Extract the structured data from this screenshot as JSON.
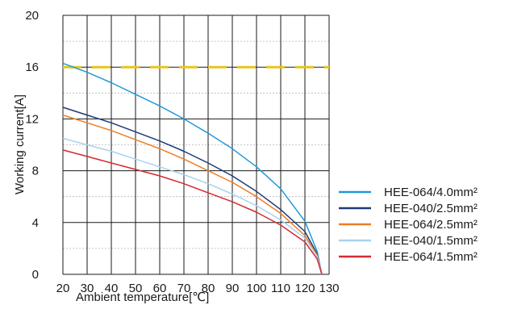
{
  "chart_data": {
    "type": "line",
    "title": "",
    "xlabel": "Ambient temperature[℃]",
    "ylabel": "Working current[A]",
    "xlim": [
      20,
      130
    ],
    "ylim": [
      0,
      20
    ],
    "x_ticks": [
      20,
      30,
      40,
      50,
      60,
      70,
      80,
      90,
      100,
      110,
      120,
      130
    ],
    "y_ticks": [
      0,
      4,
      8,
      12,
      16,
      20
    ],
    "grid": true,
    "minor_horizontal_grid": true,
    "legend_position": "right",
    "reference_line": {
      "y": 16,
      "color": "#e6c619",
      "style": "dashed"
    },
    "series": [
      {
        "name": "HEE-064/4.0mm²",
        "color": "#1f9bd7",
        "points": [
          [
            20,
            16.3
          ],
          [
            30,
            15.6
          ],
          [
            40,
            14.8
          ],
          [
            50,
            13.9
          ],
          [
            60,
            13.0
          ],
          [
            70,
            12.0
          ],
          [
            80,
            10.9
          ],
          [
            90,
            9.7
          ],
          [
            100,
            8.3
          ],
          [
            110,
            6.6
          ],
          [
            120,
            4.1
          ],
          [
            125,
            1.8
          ],
          [
            127,
            0
          ]
        ]
      },
      {
        "name": "HEE-040/2.5mm²",
        "color": "#1f3a78",
        "points": [
          [
            20,
            12.9
          ],
          [
            30,
            12.3
          ],
          [
            40,
            11.7
          ],
          [
            50,
            11.0
          ],
          [
            60,
            10.3
          ],
          [
            70,
            9.5
          ],
          [
            80,
            8.6
          ],
          [
            90,
            7.6
          ],
          [
            100,
            6.4
          ],
          [
            110,
            5.0
          ],
          [
            120,
            3.3
          ],
          [
            125,
            1.6
          ],
          [
            127,
            0
          ]
        ]
      },
      {
        "name": "HEE-064/2.5mm²",
        "color": "#ef7d22",
        "points": [
          [
            20,
            12.3
          ],
          [
            30,
            11.7
          ],
          [
            40,
            11.1
          ],
          [
            50,
            10.4
          ],
          [
            60,
            9.7
          ],
          [
            70,
            8.9
          ],
          [
            80,
            8.0
          ],
          [
            90,
            7.1
          ],
          [
            100,
            6.0
          ],
          [
            110,
            4.7
          ],
          [
            120,
            3.0
          ],
          [
            125,
            1.5
          ],
          [
            127,
            0
          ]
        ]
      },
      {
        "name": "HEE-040/1.5mm²",
        "color": "#a7d3ee",
        "points": [
          [
            20,
            10.5
          ],
          [
            30,
            10.0
          ],
          [
            40,
            9.5
          ],
          [
            50,
            8.9
          ],
          [
            60,
            8.3
          ],
          [
            70,
            7.7
          ],
          [
            80,
            7.0
          ],
          [
            90,
            6.2
          ],
          [
            100,
            5.3
          ],
          [
            110,
            4.2
          ],
          [
            120,
            2.8
          ],
          [
            125,
            1.4
          ],
          [
            127,
            0
          ]
        ]
      },
      {
        "name": "HEE-064/1.5mm²",
        "color": "#d7292f",
        "points": [
          [
            20,
            9.6
          ],
          [
            30,
            9.1
          ],
          [
            40,
            8.6
          ],
          [
            50,
            8.1
          ],
          [
            60,
            7.6
          ],
          [
            70,
            7.0
          ],
          [
            80,
            6.3
          ],
          [
            90,
            5.6
          ],
          [
            100,
            4.8
          ],
          [
            110,
            3.8
          ],
          [
            120,
            2.5
          ],
          [
            125,
            1.2
          ],
          [
            127,
            0
          ]
        ]
      }
    ]
  }
}
